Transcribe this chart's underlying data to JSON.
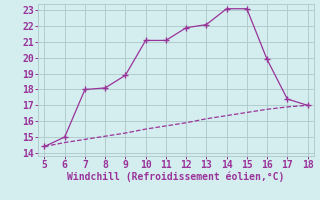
{
  "xlabel": "Windchill (Refroidissement éolien,°C)",
  "line1_x": [
    5,
    6,
    7,
    8,
    9,
    10,
    11,
    12,
    13,
    14,
    15,
    16,
    17,
    18
  ],
  "line1_y": [
    14.4,
    15.0,
    18.0,
    18.1,
    18.9,
    21.1,
    21.1,
    21.9,
    22.1,
    23.1,
    23.1,
    19.9,
    17.4,
    17.0
  ],
  "line2_x": [
    5,
    6,
    7,
    8,
    9,
    10,
    11,
    12,
    13,
    14,
    15,
    16,
    17,
    18
  ],
  "line2_y": [
    14.4,
    14.65,
    14.85,
    15.05,
    15.25,
    15.5,
    15.7,
    15.9,
    16.15,
    16.35,
    16.55,
    16.75,
    16.9,
    17.0
  ],
  "line_color": "#993399",
  "background_color": "#d4eef0",
  "grid_color": "#b0cccc",
  "xlim": [
    4.7,
    18.3
  ],
  "ylim": [
    13.8,
    23.4
  ],
  "xticks": [
    5,
    6,
    7,
    8,
    9,
    10,
    11,
    12,
    13,
    14,
    15,
    16,
    17,
    18
  ],
  "yticks": [
    14,
    15,
    16,
    17,
    18,
    19,
    20,
    21,
    22,
    23
  ],
  "tick_color": "#993399",
  "label_color": "#993399",
  "font": "monospace",
  "tick_fontsize": 7,
  "xlabel_fontsize": 7
}
